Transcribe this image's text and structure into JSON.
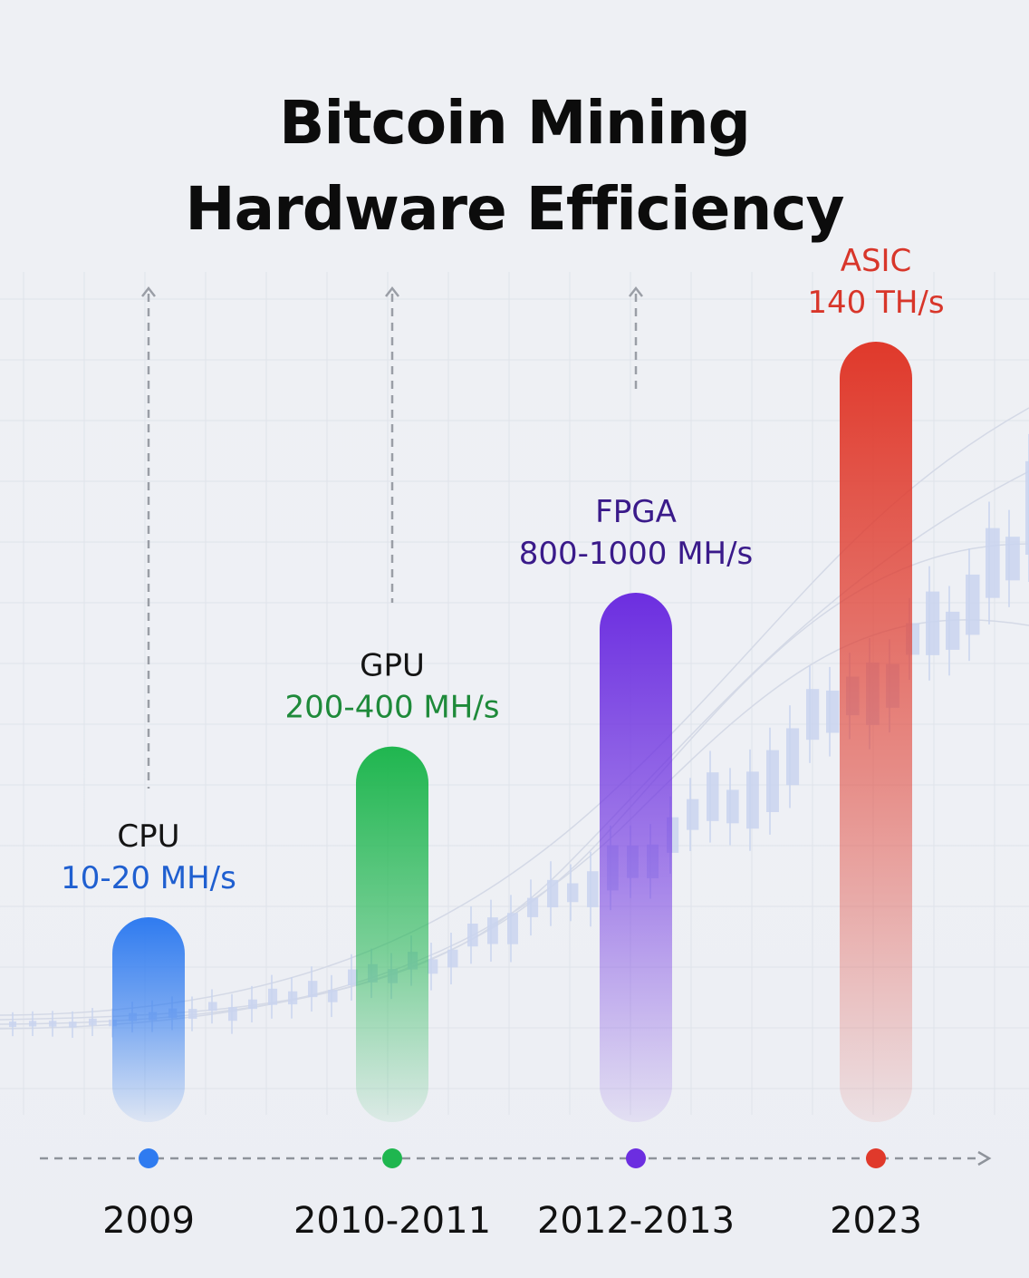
{
  "title": {
    "line1": "Bitcoin Mining",
    "line2": "Hardware Efficiency"
  },
  "chart_data": {
    "type": "bar",
    "categories": [
      "2009",
      "2010-2011",
      "2012-2013",
      "2023"
    ],
    "series": [
      {
        "values": [
          15,
          300,
          900,
          140000000
        ],
        "labels": [
          {
            "name": "CPU",
            "rate": "10-20 MH/s"
          },
          {
            "name": "GPU",
            "rate": "200-400 MH/s"
          },
          {
            "name": "FPGA",
            "rate": "800-1000 MH/s"
          },
          {
            "name": "ASIC",
            "rate": "140 TH/s"
          }
        ]
      }
    ],
    "colors": [
      "#2f7bf0",
      "#1fb64f",
      "#6c2ee0",
      "#e0392b"
    ],
    "label_name_colors": [
      "#141414",
      "#141414",
      "#3a1a8a",
      "#d8362a"
    ],
    "label_rate_colors": [
      "#1f5fd0",
      "#1e8a3a",
      "#3a1a8a",
      "#d8362a"
    ],
    "grid": true,
    "legend": "none"
  }
}
